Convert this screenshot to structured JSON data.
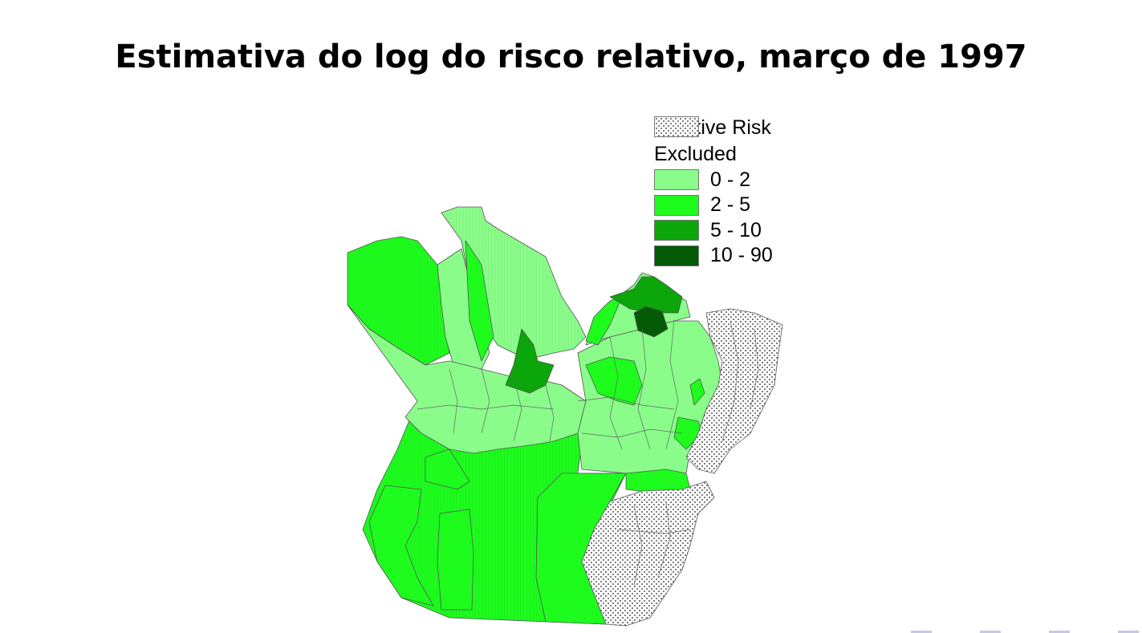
{
  "title": "Estimativa do log do risco relativo, março de 1997",
  "legend": {
    "title": "Relative Risk",
    "items": [
      {
        "label": "Excluded",
        "pattern": "dots",
        "color": "#ffffff"
      },
      {
        "label": "0 - 2",
        "color": "#8afc8a"
      },
      {
        "label": "2 - 5",
        "color": "#1efc1e"
      },
      {
        "label": "5 - 10",
        "color": "#0aa60a"
      },
      {
        "label": "10 - 90",
        "color": "#055a05"
      }
    ]
  },
  "colors": {
    "class_0_2": "#8afc8a",
    "class_2_5": "#1efc1e",
    "class_5_10": "#0aa60a",
    "class_10_90": "#055a05",
    "excluded": "#ffffff",
    "border": "#555555"
  }
}
